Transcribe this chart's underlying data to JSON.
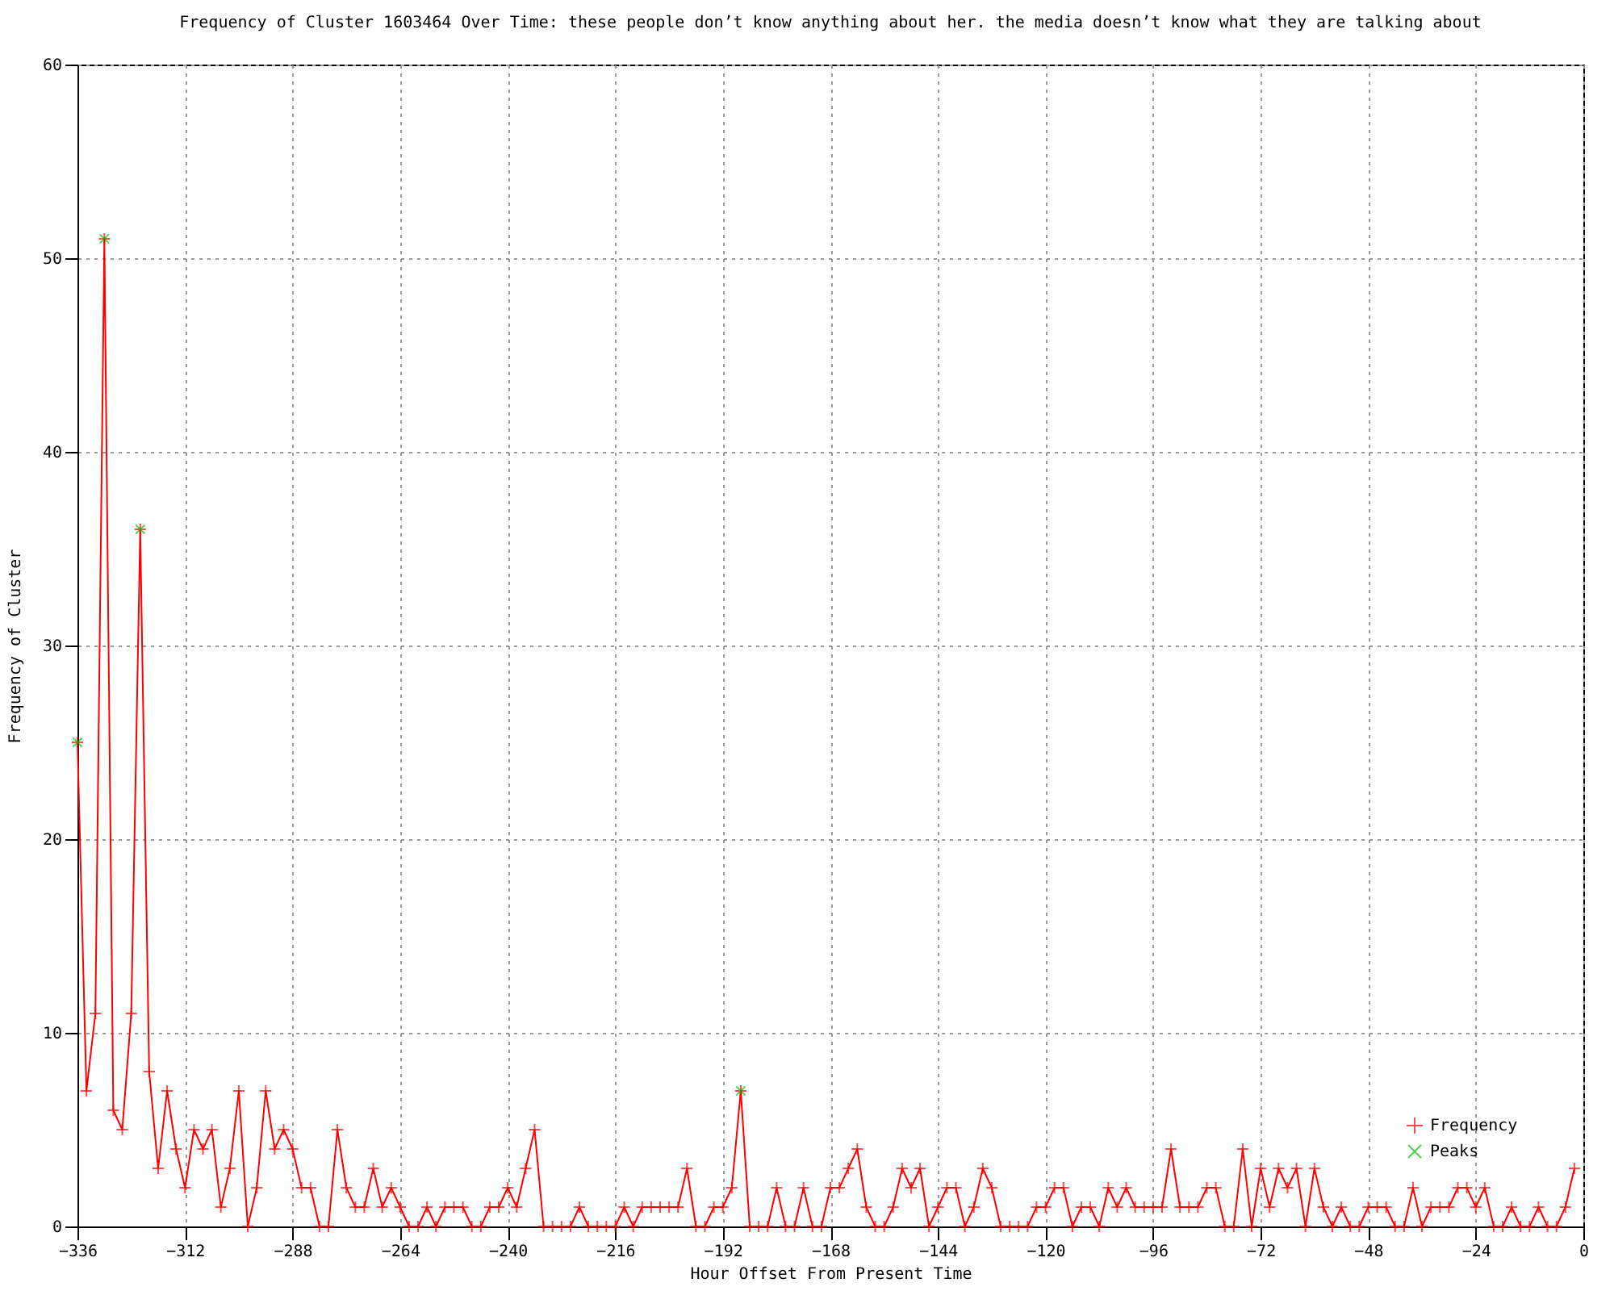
{
  "chart_data": {
    "type": "line",
    "title": "Frequency of Cluster 1603464 Over Time: these people don’t know anything about her. the media doesn’t know what they are talking about",
    "xlabel": "Hour Offset From Present Time",
    "ylabel": "Frequency of Cluster",
    "series": [
      {
        "name": "Frequency",
        "color": "#ff0000",
        "marker": "cross",
        "x": [
          -336,
          -334,
          -332,
          -330,
          -328,
          -326,
          -324,
          -322,
          -320,
          -318,
          -316,
          -314,
          -312,
          -310,
          -308,
          -306,
          -304,
          -302,
          -300,
          -298,
          -296,
          -294,
          -292,
          -290,
          -288,
          -286,
          -284,
          -282,
          -280,
          -278,
          -276,
          -274,
          -272,
          -270,
          -268,
          -266,
          -264,
          -262,
          -260,
          -258,
          -256,
          -254,
          -252,
          -250,
          -248,
          -246,
          -244,
          -242,
          -240,
          -238,
          -236,
          -234,
          -232,
          -230,
          -228,
          -226,
          -224,
          -222,
          -220,
          -218,
          -216,
          -214,
          -212,
          -210,
          -208,
          -206,
          -204,
          -202,
          -200,
          -198,
          -196,
          -194,
          -192,
          -190,
          -188,
          -186,
          -184,
          -182,
          -180,
          -178,
          -176,
          -174,
          -172,
          -170,
          -168,
          -166,
          -164,
          -162,
          -160,
          -158,
          -156,
          -154,
          -152,
          -150,
          -148,
          -146,
          -144,
          -142,
          -140,
          -138,
          -136,
          -134,
          -132,
          -130,
          -128,
          -126,
          -124,
          -122,
          -120,
          -118,
          -116,
          -114,
          -112,
          -110,
          -108,
          -106,
          -104,
          -102,
          -100,
          -98,
          -96,
          -94,
          -92,
          -90,
          -88,
          -86,
          -84,
          -82,
          -80,
          -78,
          -76,
          -74,
          -72,
          -70,
          -68,
          -66,
          -64,
          -62,
          -60,
          -58,
          -56,
          -54,
          -52,
          -50,
          -48,
          -46,
          -44,
          -42,
          -40,
          -38,
          -36,
          -34,
          -32,
          -30,
          -28,
          -26,
          -24,
          -22,
          -20,
          -18,
          -16,
          -14,
          -12,
          -10,
          -8,
          -6,
          -4,
          -2
        ],
        "values": [
          25,
          7,
          11,
          51,
          6,
          5,
          11,
          36,
          8,
          3,
          7,
          4,
          2,
          5,
          4,
          5,
          1,
          3,
          7,
          0,
          2,
          7,
          4,
          5,
          4,
          2,
          2,
          0,
          0,
          5,
          2,
          1,
          1,
          3,
          1,
          2,
          1,
          0,
          0,
          1,
          0,
          1,
          1,
          1,
          0,
          0,
          1,
          1,
          2,
          1,
          3,
          5,
          0,
          0,
          0,
          0,
          1,
          0,
          0,
          0,
          0,
          1,
          0,
          1,
          1,
          1,
          1,
          1,
          3,
          0,
          0,
          1,
          1,
          2,
          7,
          0,
          0,
          0,
          2,
          0,
          0,
          2,
          0,
          0,
          2,
          2,
          3,
          4,
          1,
          0,
          0,
          1,
          3,
          2,
          3,
          0,
          1,
          2,
          2,
          0,
          1,
          3,
          2,
          0,
          0,
          0,
          0,
          1,
          1,
          2,
          2,
          0,
          1,
          1,
          0,
          2,
          1,
          2,
          1,
          1,
          1,
          1,
          4,
          1,
          1,
          1,
          2,
          2,
          0,
          0,
          4,
          0,
          3,
          1,
          3,
          2,
          3,
          0,
          3,
          1,
          0,
          1,
          0,
          0,
          1,
          1,
          1,
          0,
          0,
          2,
          0,
          1,
          1,
          1,
          2,
          2,
          1,
          2,
          0,
          0,
          1,
          0,
          0,
          1,
          0,
          0,
          1,
          3
        ]
      },
      {
        "name": "Peaks",
        "type": "scatter",
        "color": "#00c000",
        "marker": "cross",
        "x": [
          -336,
          -330,
          -322,
          -188
        ],
        "values": [
          25,
          51,
          36,
          7
        ]
      }
    ],
    "xlim": [
      -336,
      0
    ],
    "xticks": [
      -336,
      -312,
      -288,
      -264,
      -240,
      -216,
      -192,
      -168,
      -144,
      -120,
      -96,
      -72,
      -48,
      -24,
      0
    ],
    "ylim": [
      0,
      60
    ],
    "yticks": [
      0,
      10,
      20,
      30,
      40,
      50,
      60
    ],
    "grid": true,
    "legend": "bottom right"
  }
}
